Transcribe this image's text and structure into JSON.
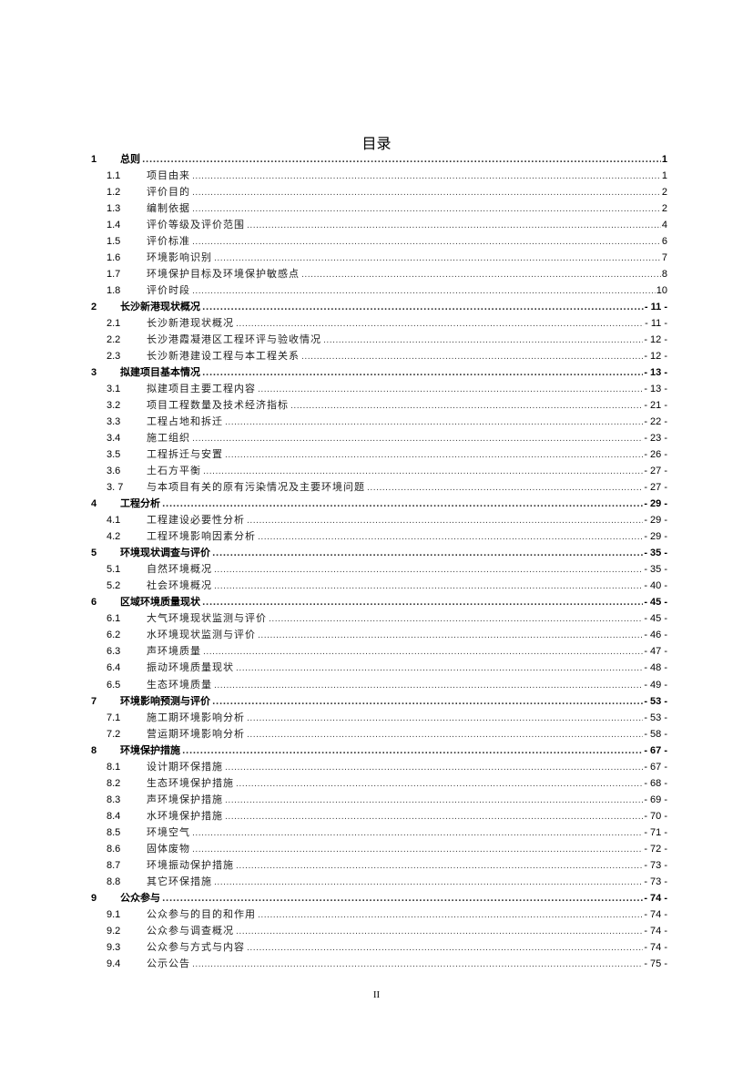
{
  "title": "目录",
  "footer": "II",
  "entries": [
    {
      "level": 1,
      "num": "1",
      "text": "总则",
      "page": "1"
    },
    {
      "level": 2,
      "num": "1.1",
      "text": "项目由来",
      "page": "1"
    },
    {
      "level": 2,
      "num": "1.2",
      "text": "评价目的",
      "page": "2"
    },
    {
      "level": 2,
      "num": "1.3",
      "text": "编制依据",
      "page": "2"
    },
    {
      "level": 2,
      "num": "1.4",
      "text": "评价等级及评价范围",
      "page": "4"
    },
    {
      "level": 2,
      "num": "1.5",
      "text": "评价标准",
      "page": "6"
    },
    {
      "level": 2,
      "num": "1.6",
      "text": "环境影响识别",
      "page": "7"
    },
    {
      "level": 2,
      "num": "1.7",
      "text": "环境保护目标及环境保护敏感点",
      "page": "8"
    },
    {
      "level": 2,
      "num": "1.8",
      "text": "评价时段",
      "page": "10"
    },
    {
      "level": 1,
      "num": "2",
      "text": "长沙新港现状概况",
      "page": "- 11 -"
    },
    {
      "level": 2,
      "num": "2.1",
      "text": "长沙新港现状概况",
      "page": "- 11 -"
    },
    {
      "level": 2,
      "num": "2.2",
      "text": "长沙港霞凝港区工程环评与验收情况",
      "page": "- 12 -"
    },
    {
      "level": 2,
      "num": "2.3",
      "text": "长沙新港建设工程与本工程关系",
      "page": "- 12 -"
    },
    {
      "level": 1,
      "num": "3",
      "text": "拟建项目基本情况",
      "page": "- 13 -"
    },
    {
      "level": 2,
      "num": "3.1",
      "text": "拟建项目主要工程内容",
      "page": "- 13 -"
    },
    {
      "level": 2,
      "num": "3.2",
      "text": "项目工程数量及技术经济指标",
      "page": "- 21 -"
    },
    {
      "level": 2,
      "num": "3.3",
      "text": "工程占地和拆迁",
      "page": "- 22 -"
    },
    {
      "level": 2,
      "num": "3.4",
      "text": "施工组织",
      "page": "- 23 -"
    },
    {
      "level": 2,
      "num": "3.5",
      "text": "工程拆迁与安置",
      "page": "- 26 -"
    },
    {
      "level": 2,
      "num": "3.6",
      "text": "土石方平衡",
      "page": "- 27 -"
    },
    {
      "level": 2,
      "num": "3. 7",
      "text": "与本项目有关的原有污染情况及主要环境问题",
      "page": "- 27 -"
    },
    {
      "level": 1,
      "num": "4",
      "text": "工程分析",
      "page": "- 29 -"
    },
    {
      "level": 2,
      "num": "4.1",
      "text": "工程建设必要性分析",
      "page": "- 29 -"
    },
    {
      "level": 2,
      "num": "4.2",
      "text": "工程环境影响因素分析",
      "page": "- 29 -"
    },
    {
      "level": 1,
      "num": "5",
      "text": "环境现状调查与评价",
      "page": "- 35 -"
    },
    {
      "level": 2,
      "num": "5.1",
      "text": "自然环境概况",
      "page": "- 35 -"
    },
    {
      "level": 2,
      "num": "5.2",
      "text": "社会环境概况",
      "page": "- 40 -"
    },
    {
      "level": 1,
      "num": "6",
      "text": "区域环境质量现状",
      "page": "- 45 -"
    },
    {
      "level": 2,
      "num": "6.1",
      "text": "大气环境现状监测与评价",
      "page": "- 45 -"
    },
    {
      "level": 2,
      "num": "6.2",
      "text": "水环境现状监测与评价",
      "page": "- 46 -"
    },
    {
      "level": 2,
      "num": "6.3",
      "text": "声环境质量",
      "page": "- 47 -"
    },
    {
      "level": 2,
      "num": "6.4",
      "text": "振动环境质量现状",
      "page": "- 48 -"
    },
    {
      "level": 2,
      "num": "6.5",
      "text": "生态环境质量",
      "page": "- 49 -"
    },
    {
      "level": 1,
      "num": "7",
      "text": "环境影响预测与评价",
      "page": "- 53 -"
    },
    {
      "level": 2,
      "num": "7.1",
      "text": "施工期环境影响分析",
      "page": "- 53 -"
    },
    {
      "level": 2,
      "num": "7.2",
      "text": "营运期环境影响分析",
      "page": "- 58 -"
    },
    {
      "level": 1,
      "num": "8",
      "text": "环境保护措施",
      "page": "- 67 -"
    },
    {
      "level": 2,
      "num": "8.1",
      "text": "设计期环保措施",
      "page": "- 67 -"
    },
    {
      "level": 2,
      "num": "8.2",
      "text": "生态环境保护措施",
      "page": "- 68 -"
    },
    {
      "level": 2,
      "num": "8.3",
      "text": "声环境保护措施",
      "page": "- 69 -"
    },
    {
      "level": 2,
      "num": "8.4",
      "text": "水环境保护措施",
      "page": "- 70 -"
    },
    {
      "level": 2,
      "num": "8.5",
      "text": "环境空气",
      "page": "- 71 -"
    },
    {
      "level": 2,
      "num": "8.6",
      "text": "固体废物",
      "page": "- 72 -"
    },
    {
      "level": 2,
      "num": "8.7",
      "text": "环境振动保护措施",
      "page": "- 73 -"
    },
    {
      "level": 2,
      "num": "8.8",
      "text": "其它环保措施",
      "page": "- 73 -"
    },
    {
      "level": 1,
      "num": "9",
      "text": "公众参与",
      "page": "- 74 -"
    },
    {
      "level": 2,
      "num": "9.1",
      "text": "公众参与的目的和作用",
      "page": "- 74 -"
    },
    {
      "level": 2,
      "num": "9.2",
      "text": "公众参与调查概况",
      "page": "- 74 -"
    },
    {
      "level": 2,
      "num": "9.3",
      "text": "公众参与方式与内容",
      "page": "- 74 -"
    },
    {
      "level": 2,
      "num": "9.4",
      "text": "公示公告",
      "page": "- 75 -"
    }
  ]
}
